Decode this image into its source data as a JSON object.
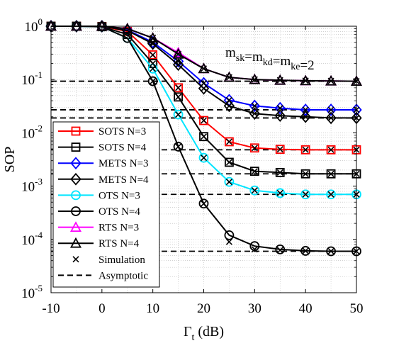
{
  "chart_data": {
    "type": "line",
    "title": "",
    "xlabel": "Γ",
    "xlabel_sub": "t",
    "xlabel_unit": " (dB)",
    "ylabel": "SOP",
    "xlim": [
      -10,
      50
    ],
    "ylim_log10": [
      -5,
      0
    ],
    "yscale": "log",
    "grid": "on (major and minor, dotted)",
    "legend_position": "left-middle",
    "x_ticks": [
      "-10",
      "0",
      "10",
      "20",
      "30",
      "40",
      "50"
    ],
    "y_ticks": [
      {
        "base": "10",
        "exp": "0"
      },
      {
        "base": "10",
        "exp": "-1"
      },
      {
        "base": "10",
        "exp": "-2"
      },
      {
        "base": "10",
        "exp": "-3"
      },
      {
        "base": "10",
        "exp": "-4"
      },
      {
        "base": "10",
        "exp": "-5"
      }
    ],
    "annotation": {
      "parts": [
        {
          "t": "m",
          "sub": "sk"
        },
        {
          "t": "=m",
          "sub": "kd"
        },
        {
          "t": "=m",
          "sub": "ke"
        },
        {
          "t": "=2",
          "sub": ""
        }
      ]
    },
    "x": [
      -10,
      -5,
      0,
      5,
      10,
      15,
      20,
      25,
      30,
      35,
      40,
      45,
      50
    ],
    "series": [
      {
        "name": "SOTS N=3",
        "color": "#ff0000",
        "marker": "square",
        "values": [
          1,
          1,
          0.99,
          0.8,
          0.29,
          0.07,
          0.017,
          0.0068,
          0.0052,
          0.0049,
          0.0048,
          0.0048,
          0.0048
        ]
      },
      {
        "name": "SOTS N=4",
        "color": "#000000",
        "marker": "square",
        "values": [
          1,
          1,
          0.98,
          0.7,
          0.2,
          0.047,
          0.0085,
          0.0028,
          0.0019,
          0.0018,
          0.0017,
          0.0017,
          0.0017
        ]
      },
      {
        "name": "METS N=3",
        "color": "#0000ff",
        "marker": "diamond",
        "values": [
          1,
          1,
          1,
          0.85,
          0.5,
          0.22,
          0.085,
          0.041,
          0.032,
          0.029,
          0.027,
          0.027,
          0.027
        ]
      },
      {
        "name": "METS N=4",
        "color": "#000000",
        "marker": "diamond",
        "values": [
          1,
          1,
          1,
          0.83,
          0.47,
          0.19,
          0.068,
          0.032,
          0.023,
          0.021,
          0.02,
          0.019,
          0.019
        ]
      },
      {
        "name": "OTS N=3",
        "color": "#00e5ff",
        "marker": "circle",
        "values": [
          1,
          1,
          0.98,
          0.6,
          0.16,
          0.022,
          0.0034,
          0.0012,
          0.00083,
          0.00074,
          0.0007,
          0.0007,
          0.0007
        ]
      },
      {
        "name": "OTS N=4",
        "color": "#000000",
        "marker": "circle",
        "values": [
          1,
          1,
          0.98,
          0.6,
          0.093,
          0.0055,
          0.00047,
          0.00012,
          7.5e-05,
          6.5e-05,
          6.1e-05,
          6e-05,
          6e-05
        ]
      },
      {
        "name": "RTS N=3",
        "color": "#ff00ff",
        "marker": "triangle",
        "values": [
          1,
          1,
          1,
          0.9,
          0.6,
          0.32,
          0.16,
          0.11,
          0.1,
          0.097,
          0.095,
          0.094,
          0.093
        ]
      },
      {
        "name": "RTS N=4",
        "color": "#000000",
        "marker": "triangle",
        "values": [
          1,
          1,
          1,
          0.9,
          0.6,
          0.3,
          0.16,
          0.11,
          0.1,
          0.097,
          0.095,
          0.094,
          0.093
        ]
      }
    ],
    "simulation": {
      "name": "Simulation",
      "marker": "x",
      "x": [
        10,
        15,
        20,
        25,
        30,
        35,
        40,
        45,
        50
      ],
      "sets": [
        [
          0.29,
          0.07,
          0.017,
          0.0068,
          0.0052,
          0.0049,
          0.0048,
          0.0048,
          0.0048
        ],
        [
          0.2,
          0.047,
          0.0085,
          0.0028,
          0.0019,
          0.0018,
          0.0017,
          0.0017,
          0.0017
        ],
        [
          0.5,
          0.22,
          0.085,
          0.041,
          0.032,
          0.029,
          0.027,
          0.027,
          0.027
        ],
        [
          0.47,
          0.19,
          0.068,
          0.032,
          0.023,
          0.021,
          0.02,
          0.019,
          0.019
        ],
        [
          0.16,
          0.022,
          0.0034,
          0.0012,
          0.00083,
          0.00074,
          0.0007,
          0.0007,
          0.0007
        ],
        [
          0.093,
          0.0055,
          0.00047,
          9e-05,
          6.5e-05,
          6.3e-05,
          6.1e-05,
          6e-05,
          6e-05
        ],
        [
          0.6,
          0.3,
          0.16,
          0.11,
          0.1,
          0.097,
          0.095,
          0.094,
          0.093
        ]
      ]
    },
    "asymptotic": {
      "name": "Asymptotic",
      "style": "dashed",
      "x_range": [
        -10,
        50
      ],
      "levels": [
        0.093,
        0.027,
        0.019,
        0.0048,
        0.0017,
        0.0007,
        6e-05
      ]
    }
  }
}
